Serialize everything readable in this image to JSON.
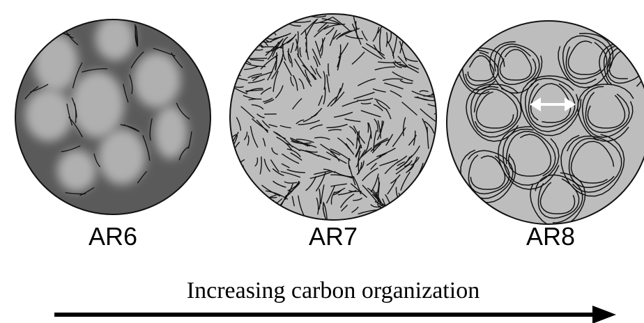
{
  "panels": [
    {
      "label": "AR6"
    },
    {
      "label": "AR7"
    },
    {
      "label": "AR8"
    }
  ],
  "caption": "Increasing carbon organization"
}
